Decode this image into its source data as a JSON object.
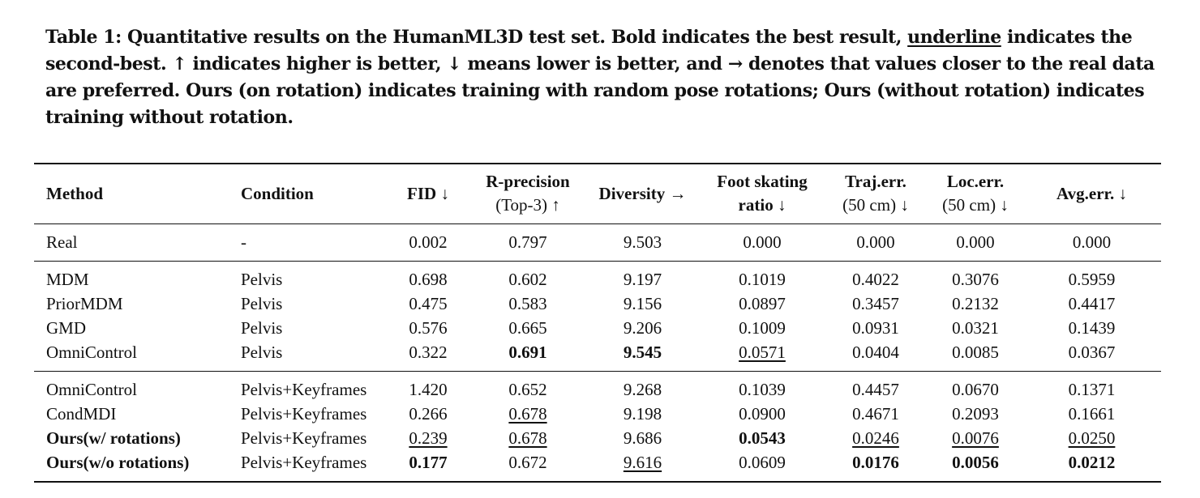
{
  "caption": {
    "part1": "Table 1: Quantitative results on the HumanML3D test set. Bold indicates the best result, ",
    "underline_word": "underline",
    "part2": " indicates the second-best. ↑ indicates higher is better, ↓ means lower is better, and → denotes that values closer to the real data are preferred. Ours (on rotation) indicates training with random pose rotations; Ours (without rotation) indicates training without rotation."
  },
  "headers": {
    "method": "Method",
    "condition": "Condition",
    "fid": "FID ↓",
    "rprec_main": "R-precision",
    "rprec_sub": "(Top-3) ↑",
    "diversity": "Diversity →",
    "foot_main": "Foot skating",
    "foot_sub": "ratio ↓",
    "traj_main": "Traj.err.",
    "traj_sub": "(50 cm) ↓",
    "loc_main": "Loc.err.",
    "loc_sub": "(50 cm) ↓",
    "avg": "Avg.err. ↓"
  },
  "rows": [
    {
      "method": "Real",
      "condition": "-",
      "fid": "0.002",
      "rprec": "0.797",
      "diversity": "9.503",
      "foot": "0.000",
      "traj": "0.000",
      "loc": "0.000",
      "avg": "0.000"
    },
    {
      "method": "MDM",
      "condition": "Pelvis",
      "fid": "0.698",
      "rprec": "0.602",
      "diversity": "9.197",
      "foot": "0.1019",
      "traj": "0.4022",
      "loc": "0.3076",
      "avg": "0.5959"
    },
    {
      "method": "PriorMDM",
      "condition": "Pelvis",
      "fid": "0.475",
      "rprec": "0.583",
      "diversity": "9.156",
      "foot": "0.0897",
      "traj": "0.3457",
      "loc": "0.2132",
      "avg": "0.4417"
    },
    {
      "method": "GMD",
      "condition": "Pelvis",
      "fid": "0.576",
      "rprec": "0.665",
      "diversity": "9.206",
      "foot": "0.1009",
      "traj": "0.0931",
      "loc": "0.0321",
      "avg": "0.1439"
    },
    {
      "method": "OmniControl",
      "condition": "Pelvis",
      "fid": "0.322",
      "rprec": "0.691",
      "diversity": "9.545",
      "foot": "0.0571",
      "traj": "0.0404",
      "loc": "0.0085",
      "avg": "0.0367"
    },
    {
      "method": "OmniControl",
      "condition": "Pelvis+Keyframes",
      "fid": "1.420",
      "rprec": "0.652",
      "diversity": "9.268",
      "foot": "0.1039",
      "traj": "0.4457",
      "loc": "0.0670",
      "avg": "0.1371"
    },
    {
      "method": "CondMDI",
      "condition": "Pelvis+Keyframes",
      "fid": "0.266",
      "rprec": "0.678",
      "diversity": "9.198",
      "foot": "0.0900",
      "traj": "0.4671",
      "loc": "0.2093",
      "avg": "0.1661"
    },
    {
      "method": "Ours(w/ rotations)",
      "condition": "Pelvis+Keyframes",
      "fid": "0.239",
      "rprec": "0.678",
      "diversity": "9.686",
      "foot": "0.0543",
      "traj": "0.0246",
      "loc": "0.0076",
      "avg": "0.0250"
    },
    {
      "method": "Ours(w/o rotations)",
      "condition": "Pelvis+Keyframes",
      "fid": "0.177",
      "rprec": "0.672",
      "diversity": "9.616",
      "foot": "0.0609",
      "traj": "0.0176",
      "loc": "0.0056",
      "avg": "0.0212"
    }
  ]
}
